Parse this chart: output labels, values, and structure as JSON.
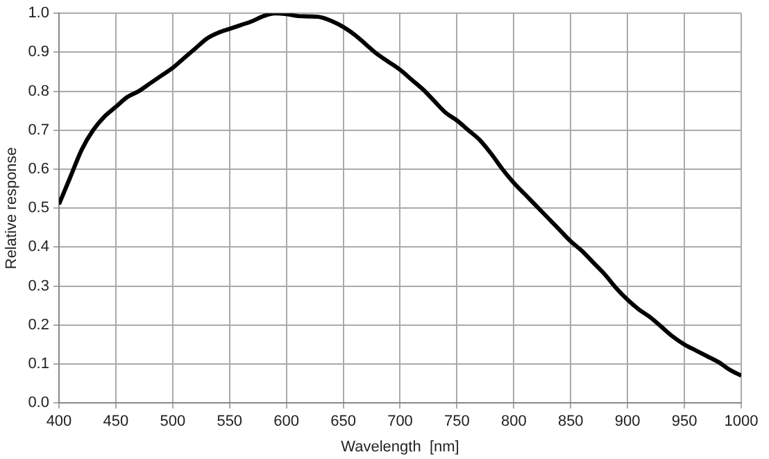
{
  "chart_data": {
    "type": "line",
    "xlabel": "Wavelength  [nm]",
    "ylabel": "Relative response",
    "x": [
      400,
      410,
      420,
      430,
      440,
      450,
      460,
      470,
      480,
      490,
      500,
      510,
      520,
      530,
      540,
      550,
      560,
      570,
      580,
      590,
      600,
      610,
      620,
      630,
      640,
      650,
      660,
      670,
      680,
      690,
      700,
      710,
      720,
      730,
      740,
      750,
      760,
      770,
      780,
      790,
      800,
      810,
      820,
      830,
      840,
      850,
      860,
      870,
      880,
      890,
      900,
      910,
      920,
      930,
      940,
      950,
      960,
      970,
      980,
      990,
      1000
    ],
    "series": [
      {
        "color": "#000000",
        "values": [
          0.51,
          0.58,
          0.65,
          0.7,
          0.735,
          0.76,
          0.785,
          0.8,
          0.82,
          0.84,
          0.86,
          0.885,
          0.91,
          0.935,
          0.95,
          0.96,
          0.97,
          0.98,
          0.993,
          1.0,
          0.998,
          0.993,
          0.992,
          0.99,
          0.98,
          0.965,
          0.945,
          0.92,
          0.895,
          0.875,
          0.855,
          0.83,
          0.805,
          0.775,
          0.745,
          0.725,
          0.7,
          0.675,
          0.64,
          0.6,
          0.565,
          0.535,
          0.505,
          0.475,
          0.445,
          0.415,
          0.39,
          0.36,
          0.33,
          0.295,
          0.265,
          0.24,
          0.22,
          0.195,
          0.17,
          0.15,
          0.135,
          0.12,
          0.105,
          0.085,
          0.07
        ]
      }
    ],
    "xlim": [
      400,
      1000
    ],
    "xticks": [
      400,
      450,
      500,
      550,
      600,
      650,
      700,
      750,
      800,
      850,
      900,
      950,
      1000
    ],
    "ylim": [
      0,
      1
    ],
    "yticks": [
      {
        "value": 0,
        "label": "0.0"
      },
      {
        "value": 0.1,
        "label": "0.1"
      },
      {
        "value": 0.2,
        "label": "0.2"
      },
      {
        "value": 0.3,
        "label": "0.3"
      },
      {
        "value": 0.4,
        "label": "0.4"
      },
      {
        "value": 0.5,
        "label": "0.5"
      },
      {
        "value": 0.6,
        "label": "0.6"
      },
      {
        "value": 0.7,
        "label": "0.7"
      },
      {
        "value": 0.8,
        "label": "0.8"
      },
      {
        "value": 0.9,
        "label": "0.9"
      },
      {
        "value": 1,
        "label": "1.0"
      }
    ],
    "grid": true,
    "marker": "none",
    "line_style": "solid"
  }
}
